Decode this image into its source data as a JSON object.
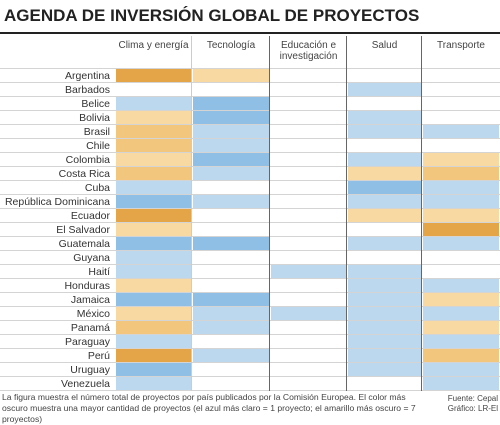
{
  "chart_data": {
    "type": "heatmap",
    "title": "AGENDA DE INVERSIÓN GLOBAL DE PROYECTOS",
    "columns": [
      "Clima y energía",
      "Tecnología",
      "Educación e investigación",
      "Salud",
      "Transporte"
    ],
    "categories": [
      "Argentina",
      "Barbados",
      "Belice",
      "Bolivia",
      "Brasil",
      "Chile",
      "Colombia",
      "Costa Rica",
      "Cuba",
      "República Dominicana",
      "Ecuador",
      "El Salvador",
      "Guatemala",
      "Guyana",
      "Haití",
      "Honduras",
      "Jamaica",
      "México",
      "Panamá",
      "Paraguay",
      "Perú",
      "Uruguay",
      "Venezuela"
    ],
    "values": [
      [
        7,
        5,
        0,
        0,
        0
      ],
      [
        0,
        0,
        0,
        1,
        0
      ],
      [
        1,
        2,
        0,
        0,
        0
      ],
      [
        5,
        2,
        0,
        1,
        0
      ],
      [
        6,
        1,
        0,
        1,
        1
      ],
      [
        6,
        1,
        0,
        0,
        0
      ],
      [
        5,
        2,
        0,
        1,
        5
      ],
      [
        6,
        1,
        0,
        5,
        6
      ],
      [
        1,
        0,
        0,
        2,
        1
      ],
      [
        2,
        1,
        0,
        1,
        1
      ],
      [
        7,
        0,
        0,
        5,
        5
      ],
      [
        5,
        0,
        0,
        0,
        7
      ],
      [
        2,
        2,
        0,
        1,
        1
      ],
      [
        1,
        0,
        0,
        0,
        0
      ],
      [
        1,
        0,
        1,
        1,
        0
      ],
      [
        5,
        0,
        0,
        1,
        1
      ],
      [
        2,
        2,
        0,
        1,
        5
      ],
      [
        5,
        1,
        1,
        1,
        1
      ],
      [
        6,
        1,
        0,
        1,
        5
      ],
      [
        1,
        0,
        0,
        1,
        1
      ],
      [
        7,
        1,
        0,
        1,
        6
      ],
      [
        2,
        0,
        0,
        1,
        1
      ],
      [
        1,
        0,
        0,
        0,
        1
      ]
    ],
    "colors": [
      "#ffffff",
      "#bcd8ee",
      "#8fbfe4",
      "#6aa9dc",
      "#fbe6c2",
      "#f8d9a2",
      "#f2c67c",
      "#e3a548"
    ],
    "note": "La figura muestra el número total de proyectos por país publicados por la Comisión Europea. El color más oscuro muestra una mayor cantidad de proyectos (el azul más claro = 1 proyecto; el amarillo más oscuro = 7 proyectos)",
    "source": [
      "Fuente: Cepal",
      "Gráfico: LR-El"
    ]
  }
}
